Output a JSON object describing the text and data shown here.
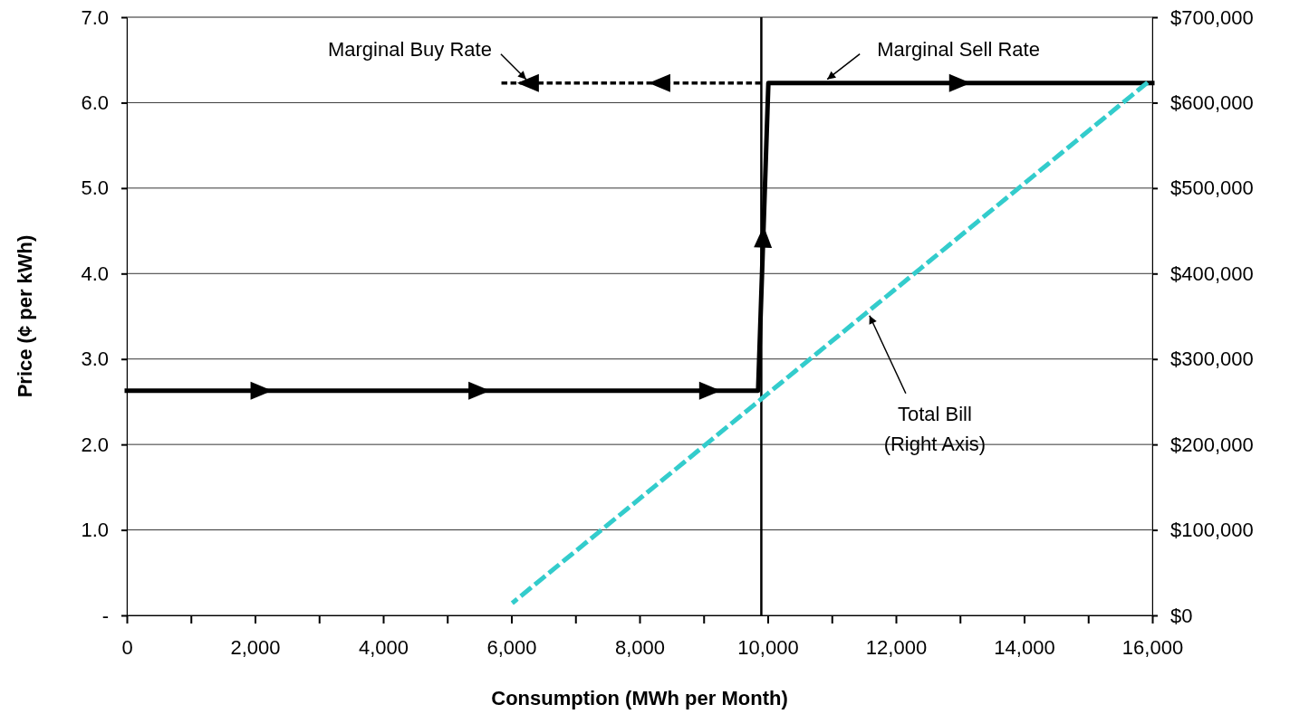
{
  "chart_data": {
    "type": "line",
    "xlabel": "Consumption (MWh per Month)",
    "ylabel": "Price (¢ per kWh)",
    "xlim": [
      0,
      16000
    ],
    "ylim": [
      0,
      7
    ],
    "y2lim": [
      0,
      700000
    ],
    "xticks": [
      0,
      {
        "value": 1000,
        "label": null
      },
      {
        "value": 2000,
        "label": "2,000"
      },
      {
        "value": 3000,
        "label": null
      },
      {
        "value": 4000,
        "label": "4,000"
      },
      {
        "value": 5000,
        "label": null
      },
      {
        "value": 6000,
        "label": "6,000"
      },
      {
        "value": 7000,
        "label": null
      },
      {
        "value": 8000,
        "label": "8,000"
      },
      {
        "value": 9000,
        "label": null
      },
      {
        "value": 10000,
        "label": "10,000"
      },
      {
        "value": 11000,
        "label": null
      },
      {
        "value": 12000,
        "label": "12,000"
      },
      {
        "value": 13000,
        "label": null
      },
      {
        "value": 14000,
        "label": "14,000"
      },
      {
        "value": 15000,
        "label": null
      },
      {
        "value": 16000,
        "label": "16,000"
      }
    ],
    "yticks": [
      {
        "value": 0,
        "label": "-"
      },
      {
        "value": 1,
        "label": "1.0"
      },
      {
        "value": 2,
        "label": "2.0"
      },
      {
        "value": 3,
        "label": "3.0"
      },
      {
        "value": 4,
        "label": "4.0"
      },
      {
        "value": 5,
        "label": "5.0"
      },
      {
        "value": 6,
        "label": "6.0"
      },
      {
        "value": 7,
        "label": "7.0"
      }
    ],
    "y2ticks": [
      {
        "value": 0,
        "label": "$0"
      },
      {
        "value": 100000,
        "label": "$100,000"
      },
      {
        "value": 200000,
        "label": "$200,000"
      },
      {
        "value": 300000,
        "label": "$300,000"
      },
      {
        "value": 400000,
        "label": "$400,000"
      },
      {
        "value": 500000,
        "label": "$500,000"
      },
      {
        "value": 600000,
        "label": "$600,000"
      },
      {
        "value": 700000,
        "label": "$700,000"
      }
    ],
    "grid": "y",
    "ref_lines": [
      {
        "axis": "x",
        "value": 9900,
        "color": "#000000"
      }
    ],
    "series": [
      {
        "color": "#000000",
        "x": [
          0,
          2100,
          5500,
          9100,
          9850,
          9930,
          10010,
          13000,
          16000
        ],
        "values": [
          2.63,
          2.63,
          2.63,
          2.63,
          2.63,
          4.43,
          6.23,
          6.23,
          6.23
        ],
        "marker": "triangle",
        "line_style": "solid"
      },
      {
        "color": "#000000",
        "x": [
          9900,
          8310,
          6260,
          5870
        ],
        "values": [
          6.23,
          6.23,
          6.23,
          6.23
        ],
        "marker": "triangle",
        "line_style": "dotted"
      },
      {
        "color": "#33cccc",
        "x": [
          6040,
          15900
        ],
        "values": [
          16000,
          622000
        ],
        "axis": "y2",
        "marker": "none",
        "line_style": "dashed"
      }
    ],
    "annotations": [
      {
        "text": "Marginal Buy Rate",
        "x": 6260,
        "y": 6.23
      },
      {
        "text": "Marginal Sell Rate",
        "x": 10900,
        "y": 6.23
      },
      {
        "text": "Total Bill\n(Right Axis)",
        "x": 11560,
        "y": 3.55
      }
    ]
  }
}
